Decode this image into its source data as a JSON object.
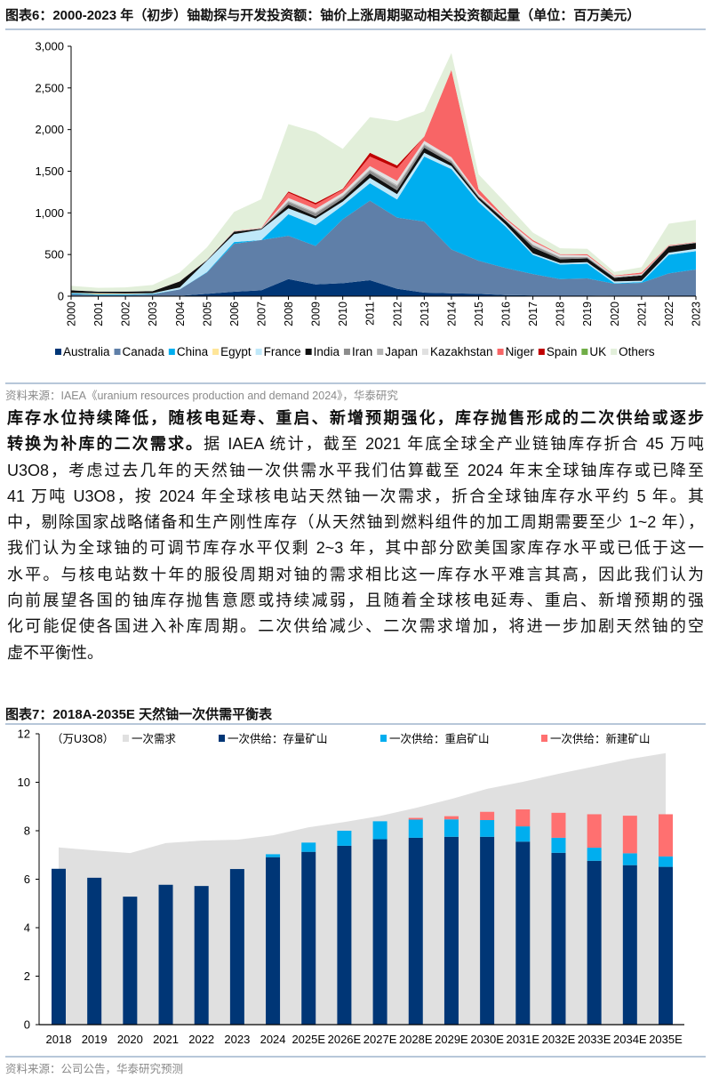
{
  "figure6": {
    "title": "图表6：2000-2023 年（初步）铀勘探与开发投资额：铀价上涨周期驱动相关投资额起量（单位：百万美元）",
    "source": "资料来源：IAEA《uranium resources production and demand 2024》，华泰研究"
  },
  "paragraph": {
    "lines": [
      [
        {
          "text": "库存水位持续降低，随核电延寿、重启、新增预期强化，库存抛售形成的二次供给或逐步",
          "bold": true
        }
      ],
      [
        {
          "text": "转换为补库的二次需求。",
          "bold": true
        },
        {
          "text": "据 IAEA 统计，截至 2021 年底全球全产业链铀库存折合 45 万吨",
          "bold": false
        }
      ],
      [
        {
          "text": "U3O8，考虑过去几年的天然铀一次供需水平我们估算截至 2024 年末全球铀库存或已降至",
          "bold": false
        }
      ],
      [
        {
          "text": "41 万吨 U3O8，按 2024 年全球核电站天然铀一次需求，折合全球铀库存水平约 5 年。其",
          "bold": false
        }
      ],
      [
        {
          "text": "中，剔除国家战略储备和生产刚性库存（从天然铀到燃料组件的加工周期需要至少 1~2 年），",
          "bold": false
        }
      ],
      [
        {
          "text": "我们认为全球铀的可调节库存水平仅剩 2~3 年，其中部分欧美国家库存水平或已低于这一",
          "bold": false
        }
      ],
      [
        {
          "text": "水平。与核电站数十年的服役周期对铀的需求相比这一库存水平难言其高，因此我们认为",
          "bold": false
        }
      ],
      [
        {
          "text": "向前展望各国的铀库存抛售意愿或持续减弱，且随着全球核电延寿、重启、新增预期的强",
          "bold": false
        }
      ],
      [
        {
          "text": "化可能促使各国进入补库周期。二次供给减少、二次需求增加，将进一步加剧天然铀的空",
          "bold": false
        }
      ],
      [
        {
          "text": "虚不平衡性。",
          "bold": false
        }
      ]
    ]
  },
  "figure7": {
    "title": "图表7：2018A-2035E 天然铀一次供需平衡表",
    "source": "资料来源：公司公告，华泰研究预测"
  },
  "chart_data": [
    {
      "type": "area",
      "stacked": true,
      "title": "",
      "xlabel": "",
      "ylabel": "",
      "x": [
        "2000",
        "2001",
        "2002",
        "2003",
        "2004",
        "2005",
        "2006",
        "2007",
        "2008",
        "2009",
        "2010",
        "2011",
        "2012",
        "2013",
        "2014",
        "2015",
        "2016",
        "2017",
        "2018",
        "2019",
        "2020",
        "2021",
        "2022",
        "2023"
      ],
      "ylim": [
        0,
        3000
      ],
      "yticks": [
        "0",
        "500",
        "1,000",
        "1,500",
        "2,000",
        "2,500",
        "3,000"
      ],
      "ytick_values": [
        0,
        500,
        1000,
        1500,
        2000,
        2500,
        3000
      ],
      "grid": false,
      "legend": "bottom",
      "series": [
        {
          "name": "Australia",
          "color": "#003676",
          "values": [
            5,
            5,
            5,
            5,
            5,
            28,
            53,
            71,
            206,
            142,
            156,
            192,
            89,
            43,
            35,
            28,
            14,
            10,
            10,
            10,
            5,
            5,
            10,
            10
          ]
        },
        {
          "name": "Canada",
          "color": "#5f7fa8",
          "values": [
            20,
            9,
            9,
            16,
            77,
            256,
            575,
            603,
            518,
            461,
            767,
            955,
            855,
            852,
            526,
            398,
            323,
            256,
            196,
            203,
            144,
            155,
            263,
            310
          ]
        },
        {
          "name": "China",
          "color": "#00aeef",
          "values": [
            10,
            8,
            8,
            7,
            0,
            6,
            22,
            0,
            259,
            249,
            167,
            209,
            217,
            781,
            965,
            703,
            497,
            231,
            174,
            177,
            7,
            10,
            224,
            220
          ]
        },
        {
          "name": "Egypt",
          "color": "#ffe699",
          "values": [
            0,
            10,
            6,
            3,
            0,
            0,
            0,
            0,
            0,
            0,
            0,
            0,
            0,
            0,
            0,
            0,
            0,
            0,
            0,
            0,
            0,
            0,
            0,
            0
          ]
        },
        {
          "name": "France",
          "color": "#bfe8f9",
          "values": [
            5,
            4,
            6,
            5,
            24,
            136,
            95,
            126,
            71,
            78,
            46,
            64,
            64,
            46,
            36,
            32,
            25,
            18,
            18,
            18,
            21,
            15,
            25,
            28
          ]
        },
        {
          "name": "India",
          "color": "#111111",
          "values": [
            31,
            19,
            21,
            24,
            71,
            7,
            29,
            9,
            46,
            28,
            35,
            53,
            46,
            60,
            35,
            28,
            45,
            71,
            46,
            46,
            43,
            63,
            74,
            71
          ]
        },
        {
          "name": "Iran",
          "color": "#8c8c8c",
          "values": [
            0,
            0,
            0,
            0,
            0,
            0,
            2,
            2,
            30,
            35,
            28,
            35,
            45,
            30,
            25,
            12,
            6,
            25,
            20,
            12,
            8,
            6,
            3,
            3
          ]
        },
        {
          "name": "Japan",
          "color": "#b3b3b3",
          "values": [
            1,
            1,
            1,
            1,
            1,
            1,
            2,
            2,
            15,
            15,
            13,
            15,
            18,
            15,
            12,
            6,
            3,
            10,
            8,
            6,
            3,
            3,
            2,
            2
          ]
        },
        {
          "name": "Kazakhstan",
          "color": "#e0e0e0",
          "values": [
            1,
            1,
            1,
            1,
            1,
            1,
            2,
            2,
            33,
            39,
            30,
            39,
            50,
            37,
            34,
            18,
            10,
            36,
            25,
            18,
            10,
            9,
            2,
            2
          ]
        },
        {
          "name": "Niger",
          "color": "#f86566",
          "values": [
            0,
            0,
            0,
            0,
            1,
            2,
            4,
            5,
            64,
            53,
            36,
            114,
            150,
            53,
            1048,
            60,
            17,
            17,
            7,
            14,
            7,
            18,
            8,
            4
          ]
        },
        {
          "name": "Spain",
          "color": "#c00000",
          "values": [
            0,
            0,
            0,
            0,
            0,
            0,
            0,
            0,
            15,
            20,
            10,
            46,
            36,
            0,
            0,
            0,
            0,
            0,
            0,
            0,
            0,
            0,
            0,
            0
          ]
        },
        {
          "name": "UK",
          "color": "#70ad47",
          "values": [
            0,
            0,
            0,
            0,
            0,
            0,
            0,
            0,
            0,
            0,
            0,
            0,
            0,
            0,
            0,
            0,
            0,
            0,
            0,
            0,
            0,
            0,
            0,
            0
          ]
        },
        {
          "name": "Others",
          "color": "#e2efda",
          "values": [
            51,
            43,
            49,
            73,
            104,
            149,
            228,
            344,
            809,
            850,
            480,
            426,
            531,
            302,
            202,
            178,
            178,
            89,
            71,
            64,
            43,
            64,
            259,
            266
          ]
        }
      ]
    },
    {
      "type": "bar",
      "stacked": true,
      "title": "",
      "unit_label": "（万U3O8）",
      "categories": [
        "2018",
        "2019",
        "2020",
        "2021",
        "2022",
        "2023",
        "2024",
        "2025E",
        "2026E",
        "2027E",
        "2028E",
        "2029E",
        "2030E",
        "2031E",
        "2032E",
        "2033E",
        "2034E",
        "2035E"
      ],
      "ylim": [
        0,
        12
      ],
      "yticks": [
        "0",
        "2",
        "4",
        "6",
        "8",
        "10",
        "12"
      ],
      "ytick_values": [
        0,
        2,
        4,
        6,
        8,
        10,
        12
      ],
      "grid": false,
      "legend": "top",
      "area_series": {
        "name": "一次需求",
        "color": "#e0e0e0",
        "values": [
          7.31,
          7.19,
          7.08,
          7.49,
          7.59,
          7.63,
          7.81,
          8.14,
          8.36,
          8.61,
          8.94,
          9.31,
          9.73,
          10.02,
          10.35,
          10.65,
          10.96,
          11.2
        ]
      },
      "series": [
        {
          "name": "一次供给：存量矿山",
          "color": "#003676",
          "values": [
            6.43,
            6.06,
            5.28,
            5.77,
            5.72,
            6.42,
            6.91,
            7.13,
            7.38,
            7.65,
            7.71,
            7.75,
            7.75,
            7.55,
            7.09,
            6.76,
            6.58,
            6.51
          ]
        },
        {
          "name": "一次供给：重启矿山",
          "color": "#00aeef",
          "values": [
            0,
            0,
            0,
            0,
            0,
            0,
            0.12,
            0.38,
            0.62,
            0.74,
            0.75,
            0.72,
            0.69,
            0.63,
            0.62,
            0.54,
            0.49,
            0.43
          ]
        },
        {
          "name": "一次供给：新建矿山",
          "color": "#ff7070",
          "values": [
            0,
            0,
            0,
            0,
            0,
            0,
            0,
            0,
            0,
            0,
            0.07,
            0.13,
            0.34,
            0.7,
            1.03,
            1.38,
            1.55,
            1.74
          ]
        }
      ]
    }
  ]
}
